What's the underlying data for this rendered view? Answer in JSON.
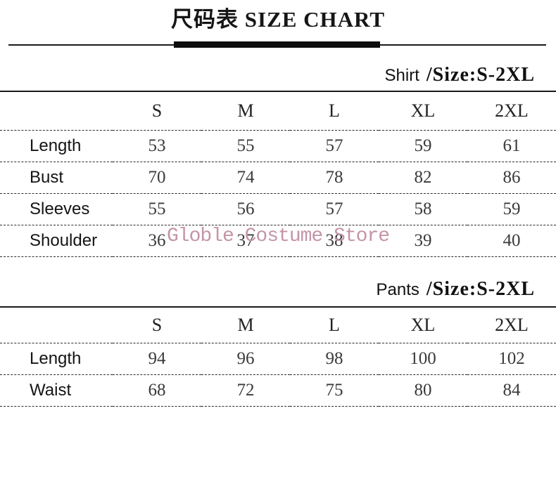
{
  "page": {
    "title": "尺码表 SIZE CHART",
    "watermark_text": "Globle Costume Store",
    "colors": {
      "background": "#ffffff",
      "text": "#1b1b1b",
      "line": "#1a1a1a",
      "watermark": "#c495a8"
    }
  },
  "shirt": {
    "garment_label": "Shirt",
    "size_range_label": "/Size:S-2XL",
    "columns": [
      "S",
      "M",
      "L",
      "XL",
      "2XL"
    ],
    "rows": [
      {
        "label": "Length",
        "values": [
          "53",
          "55",
          "57",
          "59",
          "61"
        ]
      },
      {
        "label": "Bust",
        "values": [
          "70",
          "74",
          "78",
          "82",
          "86"
        ]
      },
      {
        "label": "Sleeves",
        "values": [
          "55",
          "56",
          "57",
          "58",
          "59"
        ]
      },
      {
        "label": "Shoulder",
        "values": [
          "36",
          "37",
          "38",
          "39",
          "40"
        ]
      }
    ]
  },
  "pants": {
    "garment_label": "Pants",
    "size_range_label": "/Size:S-2XL",
    "columns": [
      "S",
      "M",
      "L",
      "XL",
      "2XL"
    ],
    "rows": [
      {
        "label": "Length",
        "values": [
          "94",
          "96",
          "98",
          "100",
          "102"
        ]
      },
      {
        "label": "Waist",
        "values": [
          "68",
          "72",
          "75",
          "80",
          "84"
        ]
      }
    ]
  }
}
